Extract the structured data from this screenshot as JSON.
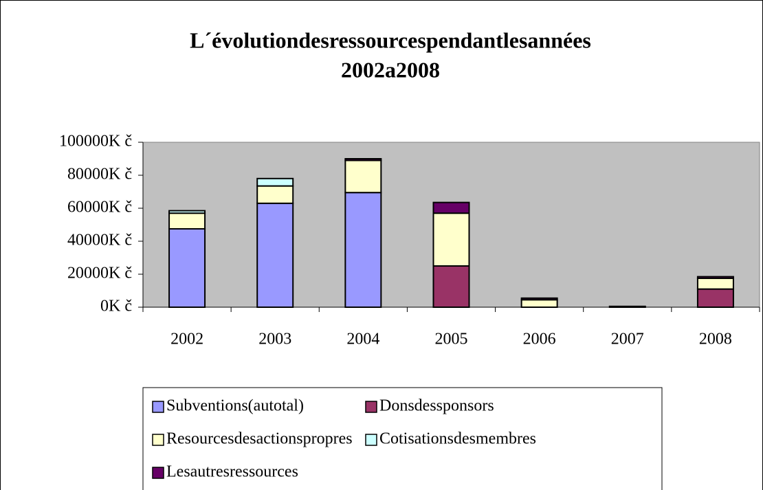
{
  "chart_data": {
    "type": "stacked_bar",
    "title": "L´évolutiondesressourcespendantlesannées",
    "subtitle": "2002a2008",
    "categories": [
      "2002",
      "2003",
      "2004",
      "2005",
      "2006",
      "2007",
      "2008"
    ],
    "series": [
      {
        "name": "Subventions(autotal)",
        "color": "#9999ff",
        "values": [
          47500,
          63000,
          69500,
          0,
          0,
          0,
          0
        ]
      },
      {
        "name": "Donsdessponsors",
        "color": "#993366",
        "values": [
          0,
          0,
          0,
          25000,
          0,
          0,
          11000
        ]
      },
      {
        "name": "Resourcesdesactionspropres",
        "color": "#ffffcc",
        "values": [
          9500,
          10500,
          19500,
          32000,
          4500,
          0,
          6500
        ]
      },
      {
        "name": "Cotisationsdesmembres",
        "color": "#ccffff",
        "values": [
          1500,
          4500,
          0,
          0,
          0,
          0,
          0
        ]
      },
      {
        "name": "Lesautresressources",
        "color": "#660066",
        "values": [
          0,
          0,
          1000,
          6500,
          1000,
          500,
          1000
        ]
      }
    ],
    "ylim": [
      0,
      100000
    ],
    "yticks": [
      {
        "value": 0,
        "label": "0K č"
      },
      {
        "value": 20000,
        "label": "20000K č"
      },
      {
        "value": 40000,
        "label": "40000K č"
      },
      {
        "value": 60000,
        "label": "60000K č"
      },
      {
        "value": 80000,
        "label": "80000K č"
      },
      {
        "value": 100000,
        "label": "100000K č"
      }
    ],
    "plot_background": "#c0c0c0"
  }
}
